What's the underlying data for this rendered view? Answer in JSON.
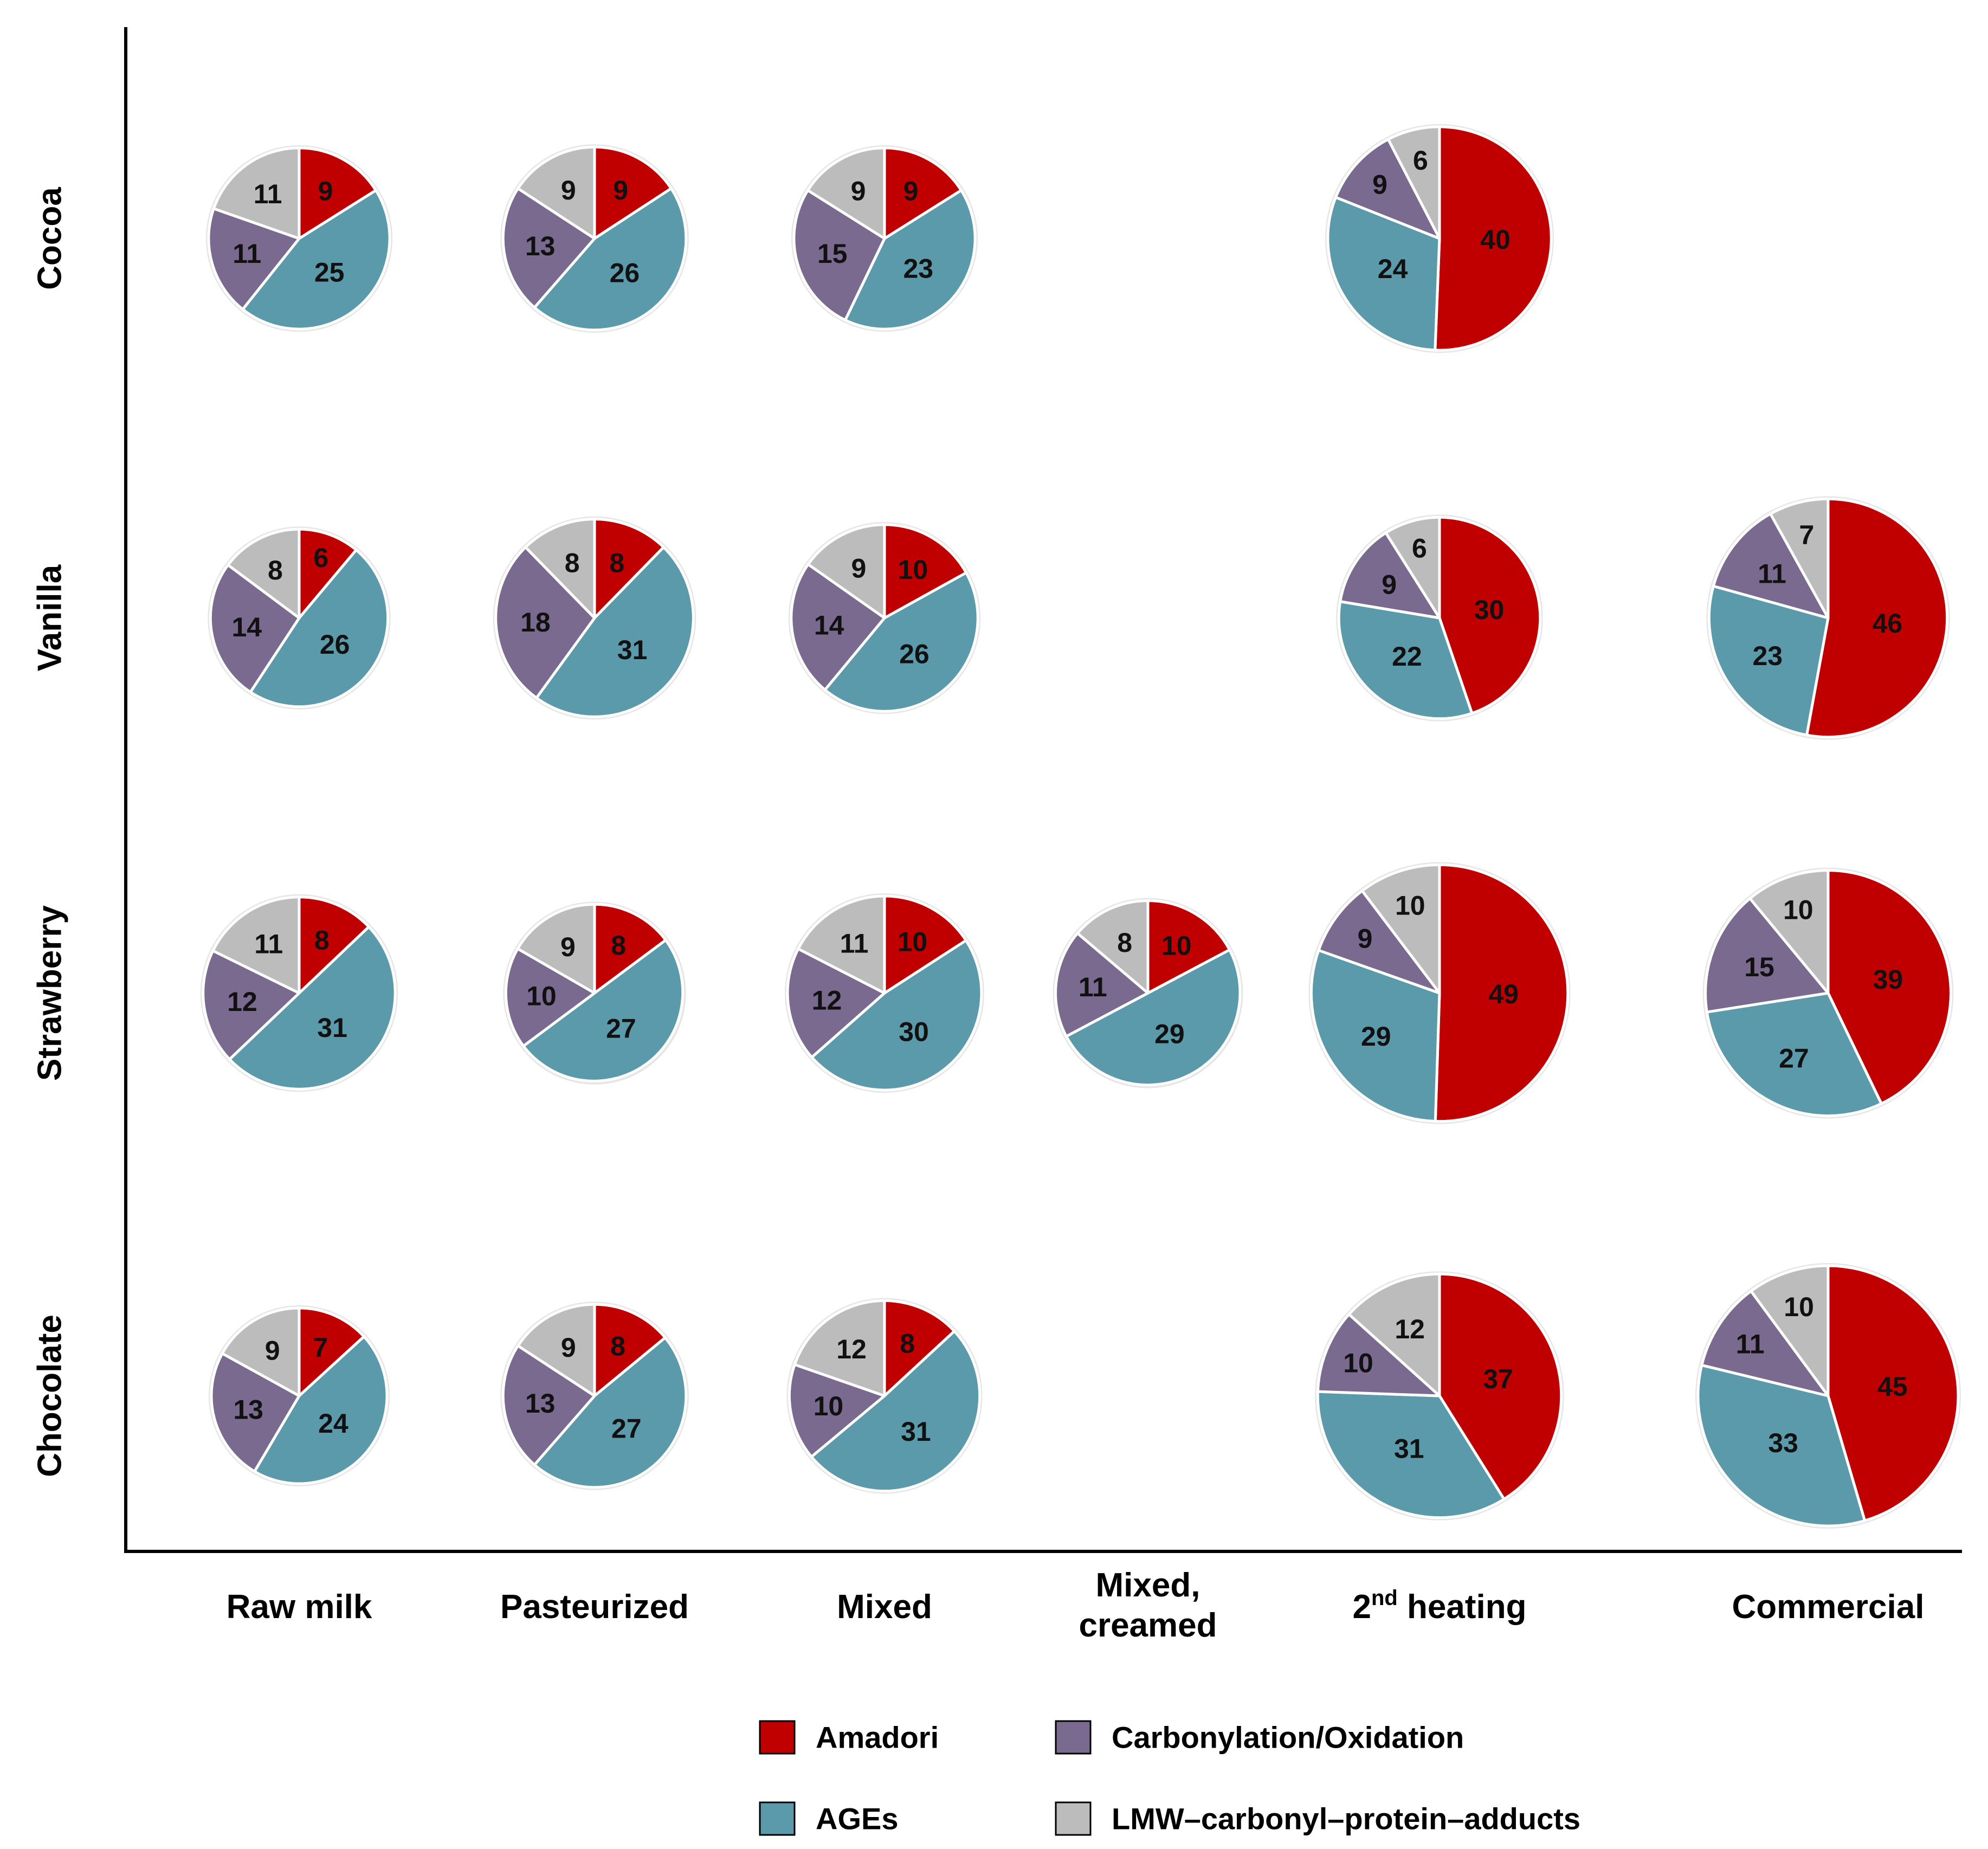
{
  "chart_data": {
    "type": "pie",
    "title": "",
    "rows": [
      "Cocoa",
      "Vanilla",
      "Strawberry",
      "Chocolate"
    ],
    "columns": [
      "Raw milk",
      "Pasteurized",
      "Mixed",
      "Mixed,|creamed",
      "2nd heating",
      "Commercial"
    ],
    "column_superscript": {
      "index": 4,
      "base": "2",
      "sup": "nd",
      "rest": " heating"
    },
    "categories": [
      "Amadori",
      "AGEs",
      "Carbonylation/Oxidation",
      "LMW–carbonyl–protein–adducts"
    ],
    "colors": {
      "Amadori": "#c00000",
      "AGEs": "#5b9aab",
      "Carbonylation/Oxidation": "#7b6a8f",
      "LMW–carbonyl–protein–adducts": "#bcbcbc"
    },
    "pies": [
      {
        "row": "Cocoa",
        "column": "Raw milk",
        "values": {
          "Amadori": 9,
          "AGEs": 25,
          "Carbonylation/Oxidation": 11,
          "LMW–carbonyl–protein–adducts": 11
        }
      },
      {
        "row": "Cocoa",
        "column": "Pasteurized",
        "values": {
          "Amadori": 9,
          "AGEs": 26,
          "Carbonylation/Oxidation": 13,
          "LMW–carbonyl–protein–adducts": 9
        }
      },
      {
        "row": "Cocoa",
        "column": "Mixed",
        "values": {
          "Amadori": 9,
          "AGEs": 23,
          "Carbonylation/Oxidation": 15,
          "LMW–carbonyl–protein–adducts": 9
        }
      },
      {
        "row": "Cocoa",
        "column": "2nd heating",
        "values": {
          "Amadori": 40,
          "AGEs": 24,
          "Carbonylation/Oxidation": 9,
          "LMW–carbonyl–protein–adducts": 6
        }
      },
      {
        "row": "Vanilla",
        "column": "Raw milk",
        "values": {
          "Amadori": 6,
          "AGEs": 26,
          "Carbonylation/Oxidation": 14,
          "LMW–carbonyl–protein–adducts": 8
        }
      },
      {
        "row": "Vanilla",
        "column": "Pasteurized",
        "values": {
          "Amadori": 8,
          "AGEs": 31,
          "Carbonylation/Oxidation": 18,
          "LMW–carbonyl–protein–adducts": 8
        }
      },
      {
        "row": "Vanilla",
        "column": "Mixed",
        "values": {
          "Amadori": 10,
          "AGEs": 26,
          "Carbonylation/Oxidation": 14,
          "LMW–carbonyl–protein–adducts": 9
        }
      },
      {
        "row": "Vanilla",
        "column": "2nd heating",
        "values": {
          "Amadori": 30,
          "AGEs": 22,
          "Carbonylation/Oxidation": 9,
          "LMW–carbonyl–protein–adducts": 6
        }
      },
      {
        "row": "Vanilla",
        "column": "Commercial",
        "values": {
          "Amadori": 46,
          "AGEs": 23,
          "Carbonylation/Oxidation": 11,
          "LMW–carbonyl–protein–adducts": 7
        }
      },
      {
        "row": "Strawberry",
        "column": "Raw milk",
        "values": {
          "Amadori": 8,
          "AGEs": 31,
          "Carbonylation/Oxidation": 12,
          "LMW–carbonyl–protein–adducts": 11
        }
      },
      {
        "row": "Strawberry",
        "column": "Pasteurized",
        "values": {
          "Amadori": 8,
          "AGEs": 27,
          "Carbonylation/Oxidation": 10,
          "LMW–carbonyl–protein–adducts": 9
        }
      },
      {
        "row": "Strawberry",
        "column": "Mixed",
        "values": {
          "Amadori": 10,
          "AGEs": 30,
          "Carbonylation/Oxidation": 12,
          "LMW–carbonyl–protein–adducts": 11
        }
      },
      {
        "row": "Strawberry",
        "column": "Mixed,|creamed",
        "values": {
          "Amadori": 10,
          "AGEs": 29,
          "Carbonylation/Oxidation": 11,
          "LMW–carbonyl–protein–adducts": 8
        }
      },
      {
        "row": "Strawberry",
        "column": "2nd heating",
        "values": {
          "Amadori": 49,
          "AGEs": 29,
          "Carbonylation/Oxidation": 9,
          "LMW–carbonyl–protein–adducts": 10
        }
      },
      {
        "row": "Strawberry",
        "column": "Commercial",
        "values": {
          "Amadori": 39,
          "AGEs": 27,
          "Carbonylation/Oxidation": 15,
          "LMW–carbonyl–protein–adducts": 10
        }
      },
      {
        "row": "Chocolate",
        "column": "Raw milk",
        "values": {
          "Amadori": 7,
          "AGEs": 24,
          "Carbonylation/Oxidation": 13,
          "LMW–carbonyl–protein–adducts": 9
        }
      },
      {
        "row": "Chocolate",
        "column": "Pasteurized",
        "values": {
          "Amadori": 8,
          "AGEs": 27,
          "Carbonylation/Oxidation": 13,
          "LMW–carbonyl–protein–adducts": 9
        }
      },
      {
        "row": "Chocolate",
        "column": "Mixed",
        "values": {
          "Amadori": 8,
          "AGEs": 31,
          "Carbonylation/Oxidation": 10,
          "LMW–carbonyl–protein–adducts": 12
        }
      },
      {
        "row": "Chocolate",
        "column": "2nd heating",
        "values": {
          "Amadori": 37,
          "AGEs": 31,
          "Carbonylation/Oxidation": 10,
          "LMW–carbonyl–protein–adducts": 12
        }
      },
      {
        "row": "Chocolate",
        "column": "Commercial",
        "values": {
          "Amadori": 45,
          "AGEs": 33,
          "Carbonylation/Oxidation": 11,
          "LMW–carbonyl–protein–adducts": 10
        }
      }
    ],
    "legend": {
      "items": [
        "Amadori",
        "Carbonylation/Oxidation",
        "AGEs",
        "LMW–carbonyl–protein–adducts"
      ],
      "placement": "bottom"
    }
  }
}
